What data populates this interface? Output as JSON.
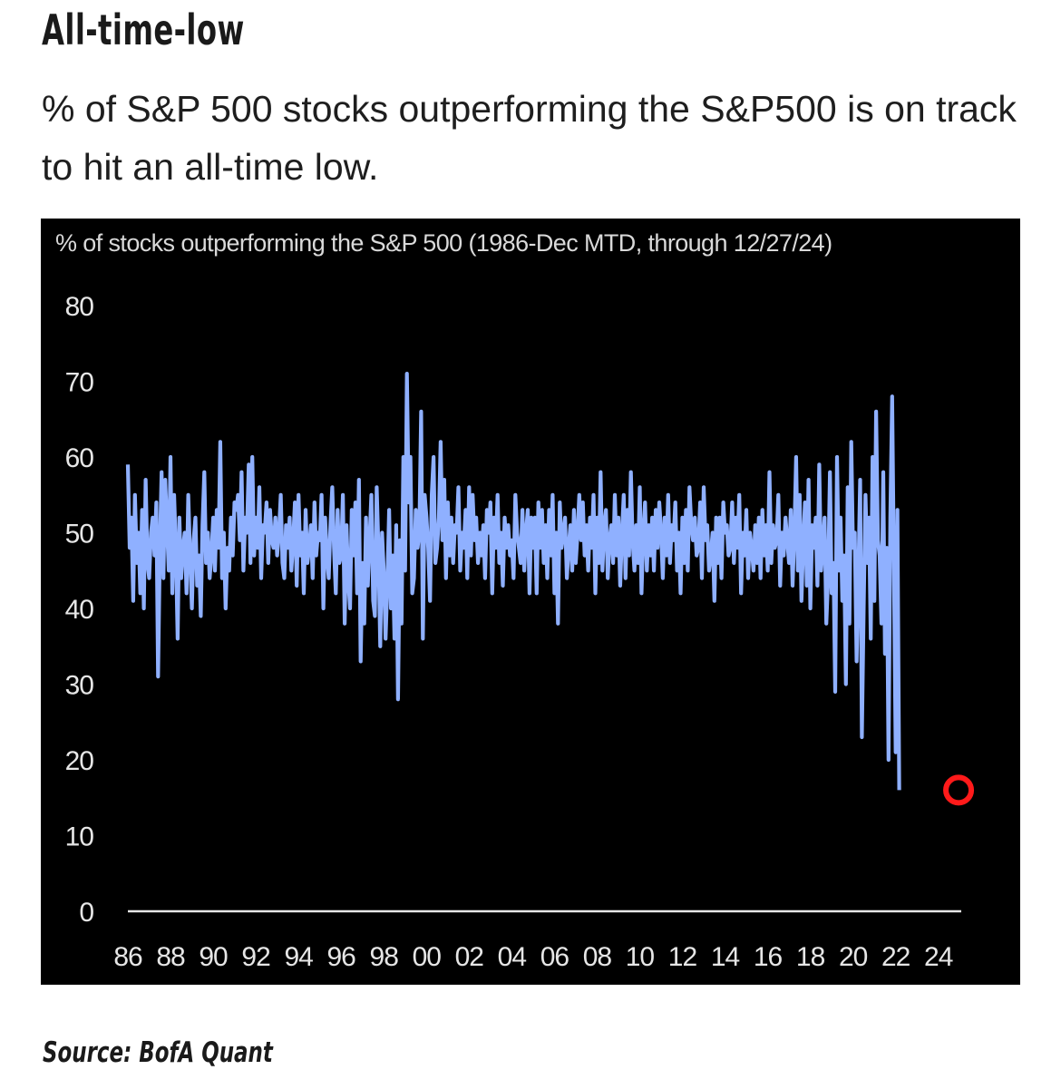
{
  "headline": "All-time-low",
  "subheadline": "% of S&P 500 stocks outperforming the S&P500 is on track to hit an all-time low.",
  "source": "Source: BofA Quant",
  "colors": {
    "line": "#8fb0ff",
    "highlight": "#ff1a1a",
    "background": "#000000",
    "axis": "#e6e6e6"
  },
  "chart_data": {
    "type": "line",
    "title": "% of stocks outperforming the S&P 500 (1986-Dec MTD, through 12/27/24)",
    "xlabel": "",
    "ylabel": "",
    "ylim": [
      0,
      80
    ],
    "xlim": [
      1986,
      2024.99
    ],
    "y_ticks": [
      "0",
      "10",
      "20",
      "30",
      "40",
      "50",
      "60",
      "70",
      "80"
    ],
    "x_ticks": [
      {
        "x": 1986,
        "label": "86"
      },
      {
        "x": 1988,
        "label": "88"
      },
      {
        "x": 1990,
        "label": "90"
      },
      {
        "x": 1992,
        "label": "92"
      },
      {
        "x": 1994,
        "label": "94"
      },
      {
        "x": 1996,
        "label": "96"
      },
      {
        "x": 1998,
        "label": "98"
      },
      {
        "x": 2000,
        "label": "00"
      },
      {
        "x": 2002,
        "label": "02"
      },
      {
        "x": 2004,
        "label": "04"
      },
      {
        "x": 2006,
        "label": "06"
      },
      {
        "x": 2008,
        "label": "08"
      },
      {
        "x": 2010,
        "label": "10"
      },
      {
        "x": 2012,
        "label": "12"
      },
      {
        "x": 2014,
        "label": "14"
      },
      {
        "x": 2016,
        "label": "16"
      },
      {
        "x": 2018,
        "label": "18"
      },
      {
        "x": 2020,
        "label": "20"
      },
      {
        "x": 2022,
        "label": "22"
      },
      {
        "x": 2024,
        "label": "24"
      }
    ],
    "grid": false,
    "legend": "none",
    "series": [
      {
        "frequency": "monthly",
        "start": "1986-01",
        "values": [
          59,
          48,
          52,
          41,
          55,
          46,
          50,
          42,
          53,
          40,
          57,
          46,
          44,
          50,
          52,
          47,
          54,
          31,
          48,
          58,
          44,
          57,
          51,
          45,
          60,
          42,
          55,
          48,
          36,
          52,
          44,
          48,
          50,
          42,
          55,
          47,
          40,
          49,
          52,
          43,
          47,
          39,
          51,
          58,
          46,
          50,
          44,
          47,
          52,
          45,
          53,
          48,
          62,
          44,
          50,
          40,
          48,
          45,
          52,
          47,
          54,
          53,
          55,
          49,
          58,
          45,
          52,
          50,
          59,
          46,
          60,
          47,
          52,
          48,
          56,
          44,
          51,
          50,
          54,
          46,
          53,
          49,
          48,
          52,
          47,
          50,
          55,
          46,
          44,
          51,
          48,
          52,
          45,
          49,
          54,
          43,
          55,
          47,
          50,
          42,
          53,
          46,
          48,
          51,
          44,
          54,
          47,
          50,
          49,
          55,
          40,
          52,
          47,
          44,
          51,
          56,
          48,
          42,
          53,
          46,
          47,
          55,
          38,
          51,
          44,
          40,
          53,
          47,
          54,
          42,
          57,
          33,
          46,
          38,
          52,
          43,
          49,
          55,
          41,
          39,
          56,
          48,
          35,
          50,
          45,
          36,
          43,
          53,
          40,
          47,
          36,
          51,
          28,
          49,
          38,
          60,
          45,
          71,
          54,
          60,
          42,
          44,
          53,
          48,
          50,
          66,
          36,
          55,
          52,
          48,
          41,
          55,
          60,
          46,
          48,
          52,
          62,
          49,
          57,
          44,
          54,
          47,
          52,
          46,
          51,
          50,
          56,
          45,
          50,
          48,
          53,
          44,
          56,
          47,
          55,
          49,
          52,
          46,
          50,
          47,
          51,
          44,
          53,
          50,
          54,
          42,
          52,
          48,
          55,
          46,
          50,
          43,
          52,
          48,
          51,
          47,
          49,
          44,
          55,
          50,
          48,
          46,
          53,
          45,
          50,
          53,
          42,
          52,
          48,
          52,
          42,
          54,
          48,
          53,
          46,
          51,
          44,
          53,
          47,
          55,
          42,
          50,
          38,
          54,
          48,
          50,
          52,
          44,
          48,
          51,
          45,
          53,
          46,
          50,
          55,
          49,
          54,
          47,
          51,
          45,
          52,
          48,
          55,
          42,
          52,
          46,
          58,
          45,
          51,
          53,
          44,
          49,
          51,
          46,
          55,
          47,
          52,
          43,
          50,
          55,
          44,
          53,
          47,
          58,
          49,
          45,
          51,
          46,
          56,
          42,
          50,
          54,
          45,
          51,
          47,
          52,
          45,
          53,
          48,
          54,
          50,
          44,
          52,
          47,
          55,
          46,
          51,
          49,
          54,
          45,
          50,
          42,
          52,
          46,
          53,
          45,
          56,
          51,
          49,
          52,
          47,
          48,
          54,
          44,
          56,
          49,
          51,
          45,
          47,
          50,
          41,
          52,
          46,
          52,
          44,
          54,
          50,
          51,
          47,
          48,
          54,
          46,
          52,
          48,
          55,
          42,
          50,
          47,
          53,
          44,
          50,
          48,
          45,
          51,
          46,
          52,
          44,
          53,
          47,
          51,
          45,
          58,
          46,
          51,
          48,
          49,
          55,
          43,
          50,
          47,
          52,
          49,
          46,
          53,
          43,
          50,
          60,
          45,
          55,
          41,
          49,
          54,
          43,
          57,
          40,
          51,
          48,
          52,
          43,
          59,
          45,
          48,
          52,
          38,
          44,
          58,
          42,
          46,
          29,
          60,
          45,
          52,
          41,
          47,
          30,
          56,
          38,
          62,
          48,
          50,
          33,
          44,
          57,
          23,
          40,
          55,
          46,
          52,
          36,
          60,
          41,
          66,
          49,
          47,
          38,
          58,
          34,
          48,
          20,
          52,
          68,
          46,
          21,
          53,
          16
        ]
      }
    ],
    "annotations": [
      {
        "type": "circle",
        "x": 2024.95,
        "y": 16,
        "color": "#ff1a1a",
        "label": ""
      }
    ]
  }
}
